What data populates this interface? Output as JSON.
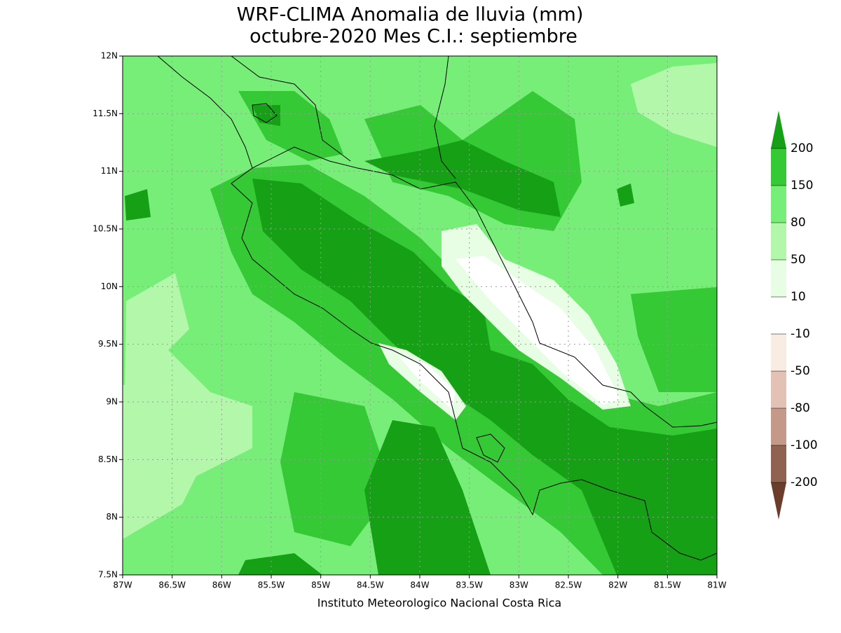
{
  "map": {
    "title": "WRF-CLIMA Anomalia de lluvia (mm)",
    "subtitle": "octubre-2020 Mes C.I.: septiembre",
    "credit": "Instituto Meteorologico Nacional Costa Rica",
    "xlim": [
      -87,
      -81
    ],
    "ylim": [
      7.5,
      12
    ],
    "xticks": [
      {
        "value": -87,
        "label": "87W"
      },
      {
        "value": -86.5,
        "label": "86.5W"
      },
      {
        "value": -86,
        "label": "86W"
      },
      {
        "value": -85.5,
        "label": "85.5W"
      },
      {
        "value": -85,
        "label": "85W"
      },
      {
        "value": -84.5,
        "label": "84.5W"
      },
      {
        "value": -84,
        "label": "84W"
      },
      {
        "value": -83.5,
        "label": "83.5W"
      },
      {
        "value": -83,
        "label": "83W"
      },
      {
        "value": -82.5,
        "label": "82.5W"
      },
      {
        "value": -82,
        "label": "82W"
      },
      {
        "value": -81.5,
        "label": "81.5W"
      },
      {
        "value": -81,
        "label": "81W"
      }
    ],
    "yticks": [
      {
        "value": 7.5,
        "label": "7.5N"
      },
      {
        "value": 8,
        "label": "8N"
      },
      {
        "value": 8.5,
        "label": "8.5N"
      },
      {
        "value": 9,
        "label": "9N"
      },
      {
        "value": 9.5,
        "label": "9.5N"
      },
      {
        "value": 10,
        "label": "10N"
      },
      {
        "value": 10.5,
        "label": "10.5N"
      },
      {
        "value": 11,
        "label": "11N"
      },
      {
        "value": 11.5,
        "label": "11.5N"
      },
      {
        "value": 12,
        "label": "12N"
      }
    ],
    "grid": true,
    "colorbar": {
      "levels": [
        200,
        150,
        80,
        50,
        10,
        -10,
        -50,
        -80,
        -100,
        -200
      ],
      "colors": [
        "#16a016",
        "#36c936",
        "#77ee77",
        "#b3f7aa",
        "#e7fde4",
        "#ffffff",
        "#f9ede3",
        "#e3c2b5",
        "#c4998a",
        "#8f6251",
        "#6b3e2c"
      ]
    }
  }
}
